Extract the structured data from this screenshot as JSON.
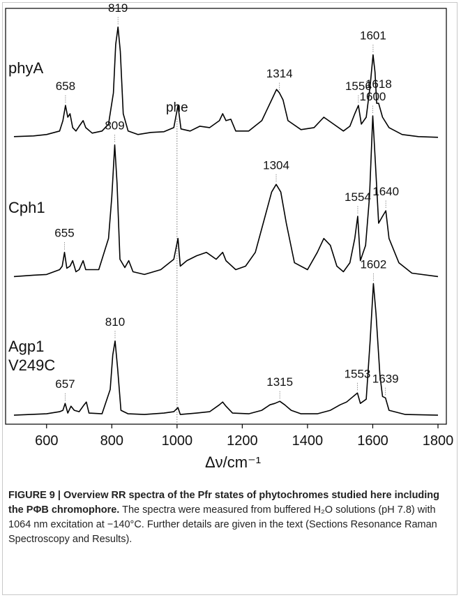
{
  "chart_data": {
    "type": "line",
    "xlabel": "Δν/cm⁻¹",
    "xlim": [
      500,
      1800
    ],
    "xticks": [
      600,
      800,
      1000,
      1200,
      1400,
      1600,
      1800
    ],
    "ylim": [
      0,
      600
    ],
    "color": "#000000",
    "reference_line": {
      "x": 1000,
      "label": "phe"
    },
    "series": [
      {
        "name": "phyA",
        "x": [
          500,
          560,
          600,
          640,
          650,
          658,
          665,
          672,
          680,
          690,
          700,
          712,
          720,
          740,
          770,
          790,
          805,
          812,
          819,
          826,
          835,
          850,
          880,
          920,
          960,
          990,
          1003,
          1012,
          1040,
          1070,
          1100,
          1130,
          1140,
          1150,
          1165,
          1180,
          1220,
          1260,
          1290,
          1305,
          1314,
          1325,
          1340,
          1380,
          1420,
          1450,
          1480,
          1510,
          1530,
          1545,
          1556,
          1565,
          1580,
          1592,
          1601,
          1607,
          1612,
          1618,
          1630,
          1650,
          1690,
          1740,
          1800
        ],
        "values": [
          415,
          416,
          418,
          423,
          438,
          460,
          443,
          448,
          428,
          423,
          430,
          438,
          428,
          420,
          423,
          433,
          478,
          548,
          573,
          538,
          448,
          423,
          418,
          421,
          422,
          428,
          460,
          426,
          423,
          430,
          428,
          438,
          448,
          438,
          440,
          423,
          423,
          438,
          468,
          483,
          478,
          468,
          438,
          425,
          428,
          443,
          433,
          423,
          430,
          448,
          460,
          433,
          443,
          488,
          533,
          508,
          463,
          463,
          443,
          428,
          418,
          415,
          414
        ],
        "peaks": [
          658,
          819,
          1314,
          1556,
          1601,
          1618
        ]
      },
      {
        "name": "Cph1",
        "x": [
          500,
          560,
          600,
          640,
          648,
          655,
          662,
          672,
          680,
          690,
          700,
          712,
          720,
          760,
          790,
          800,
          809,
          816,
          825,
          840,
          852,
          865,
          900,
          950,
          990,
          1003,
          1010,
          1030,
          1060,
          1090,
          1120,
          1140,
          1150,
          1180,
          1210,
          1240,
          1270,
          1290,
          1304,
          1318,
          1335,
          1360,
          1400,
          1430,
          1450,
          1470,
          1490,
          1510,
          1530,
          1545,
          1554,
          1562,
          1578,
          1590,
          1600,
          1608,
          1618,
          1630,
          1640,
          1650,
          1680,
          1720,
          1800
        ],
        "values": [
          213,
          215,
          216,
          223,
          228,
          248,
          225,
          228,
          236,
          220,
          223,
          236,
          223,
          223,
          268,
          328,
          403,
          348,
          238,
          226,
          236,
          220,
          216,
          223,
          238,
          268,
          228,
          236,
          243,
          248,
          238,
          248,
          236,
          223,
          228,
          248,
          300,
          335,
          346,
          335,
          290,
          233,
          223,
          248,
          268,
          258,
          228,
          220,
          233,
          268,
          300,
          236,
          258,
          328,
          445,
          378,
          290,
          300,
          308,
          268,
          233,
          218,
          213
        ],
        "peaks": [
          655,
          809,
          1304,
          1554,
          1600,
          1640
        ]
      },
      {
        "name": "Agp1 V249C",
        "x": [
          500,
          600,
          640,
          650,
          657,
          665,
          675,
          685,
          700,
          715,
          722,
          730,
          770,
          795,
          803,
          810,
          818,
          828,
          850,
          900,
          960,
          990,
          1003,
          1010,
          1060,
          1100,
          1130,
          1140,
          1150,
          1170,
          1220,
          1260,
          1285,
          1300,
          1315,
          1330,
          1350,
          1380,
          1430,
          1470,
          1500,
          1520,
          1540,
          1553,
          1562,
          1580,
          1592,
          1602,
          1610,
          1622,
          1630,
          1639,
          1650,
          1700,
          1800
        ],
        "values": [
          13,
          15,
          18,
          20,
          30,
          16,
          26,
          20,
          18,
          28,
          32,
          16,
          15,
          50,
          100,
          120,
          80,
          20,
          15,
          14,
          16,
          18,
          24,
          14,
          16,
          18,
          28,
          32,
          26,
          16,
          15,
          20,
          28,
          30,
          33,
          28,
          20,
          15,
          15,
          20,
          28,
          32,
          40,
          45,
          30,
          36,
          120,
          203,
          160,
          70,
          40,
          38,
          20,
          14,
          13
        ],
        "peaks": [
          657,
          810,
          1315,
          1553,
          1602,
          1639
        ]
      }
    ]
  },
  "caption": {
    "title": "FIGURE 9 | Overview RR spectra of the Pfr states of phytochromes studied here including the PΦB chromophore.",
    "text": "The spectra were measured from buffered H₂O solutions (pH 7.8) with 1064 nm excitation at −140°C. Further details are given in the text (Sections Resonance Raman Spectroscopy and Results)."
  }
}
